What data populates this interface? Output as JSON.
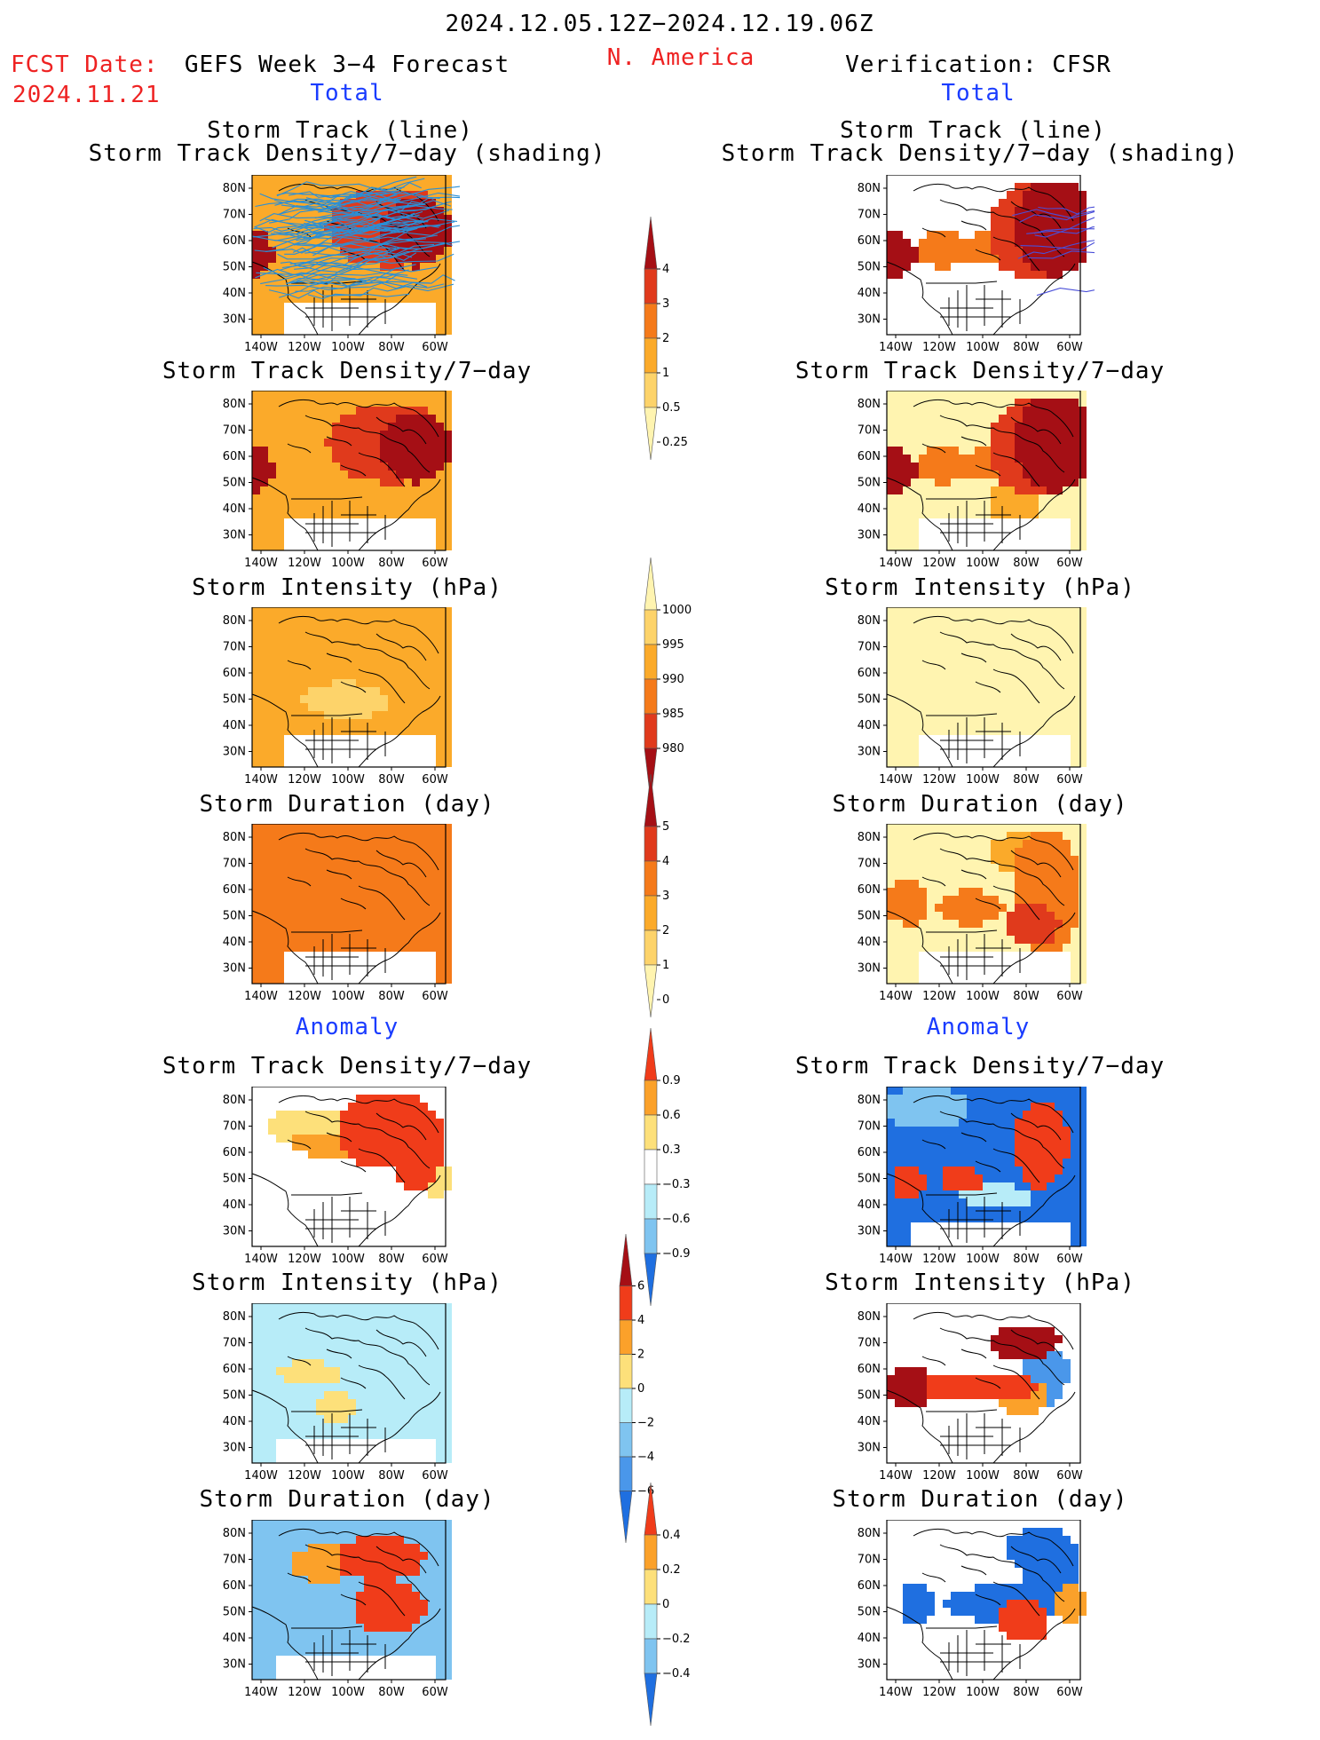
{
  "header": {
    "period": "2024.12.05.12Z−2024.12.19.06Z",
    "fcst_label": "FCST Date:",
    "fcst_date": "2024.11.21",
    "left_title": "GEFS Week 3−4 Forecast",
    "region": "N. America",
    "right_title": "Verification: CFSR",
    "total_left": "Total",
    "total_right": "Total",
    "anomaly_left": "Anomaly",
    "anomaly_right": "Anomaly"
  },
  "panel_titles": {
    "track_line": "Storm Track (line)",
    "track_shading": "Storm Track Density/7−day (shading)",
    "density": "Storm Track Density/7−day",
    "intensity": "Storm Intensity (hPa)",
    "duration": "Storm Duration (day)"
  },
  "lat_labels": [
    "80N",
    "70N",
    "60N",
    "50N",
    "40N",
    "30N"
  ],
  "lon_labels": [
    "140W",
    "120W",
    "100W",
    "80W",
    "60W"
  ],
  "colorbars": {
    "density_total": {
      "labels": [
        "4",
        "3",
        "2",
        "1",
        "0.5",
        "0.25"
      ],
      "colors": [
        "#a50f15",
        "#e03a1c",
        "#f57a1a",
        "#fbaa2a",
        "#fdd36a",
        "#fff4b0"
      ]
    },
    "intensity_total": {
      "labels": [
        "1000",
        "995",
        "990",
        "985",
        "980"
      ],
      "colors": [
        "#fff4b0",
        "#fdd36a",
        "#fbaa2a",
        "#f57a1a",
        "#e03a1c",
        "#a50f15"
      ]
    },
    "duration_total": {
      "labels": [
        "5",
        "4",
        "3",
        "2",
        "1",
        "0"
      ],
      "colors": [
        "#a50f15",
        "#e03a1c",
        "#f57a1a",
        "#fbaa2a",
        "#fdd36a",
        "#fff4b0"
      ]
    },
    "density_anom": {
      "labels": [
        "0.9",
        "0.6",
        "0.3",
        "−0.3",
        "−0.6",
        "−0.9"
      ],
      "colors": [
        "#f03c1a",
        "#fba12a",
        "#fde07a",
        "#ffffff",
        "#b7ecf8",
        "#7fc4f0",
        "#1f6fe0"
      ]
    },
    "intensity_anom": {
      "labels": [
        "6",
        "4",
        "2",
        "0",
        "−2",
        "−4",
        "−6"
      ],
      "colors": [
        "#a50f15",
        "#f03c1a",
        "#fba12a",
        "#fde07a",
        "#b7ecf8",
        "#7fc4f0",
        "#4a97ea",
        "#1f6fe0"
      ]
    },
    "duration_anom": {
      "labels": [
        "0.4",
        "0.2",
        "0",
        "−0.2",
        "−0.4"
      ],
      "colors": [
        "#f03c1a",
        "#fba12a",
        "#fde07a",
        "#b7ecf8",
        "#7fc4f0",
        "#1f6fe0"
      ]
    }
  },
  "colors": {
    "title_red": "#ee2222",
    "title_blue": "#1a3cff",
    "track_lines": "#2a8fd6",
    "track_lines_verif": "#4a4fd8"
  }
}
